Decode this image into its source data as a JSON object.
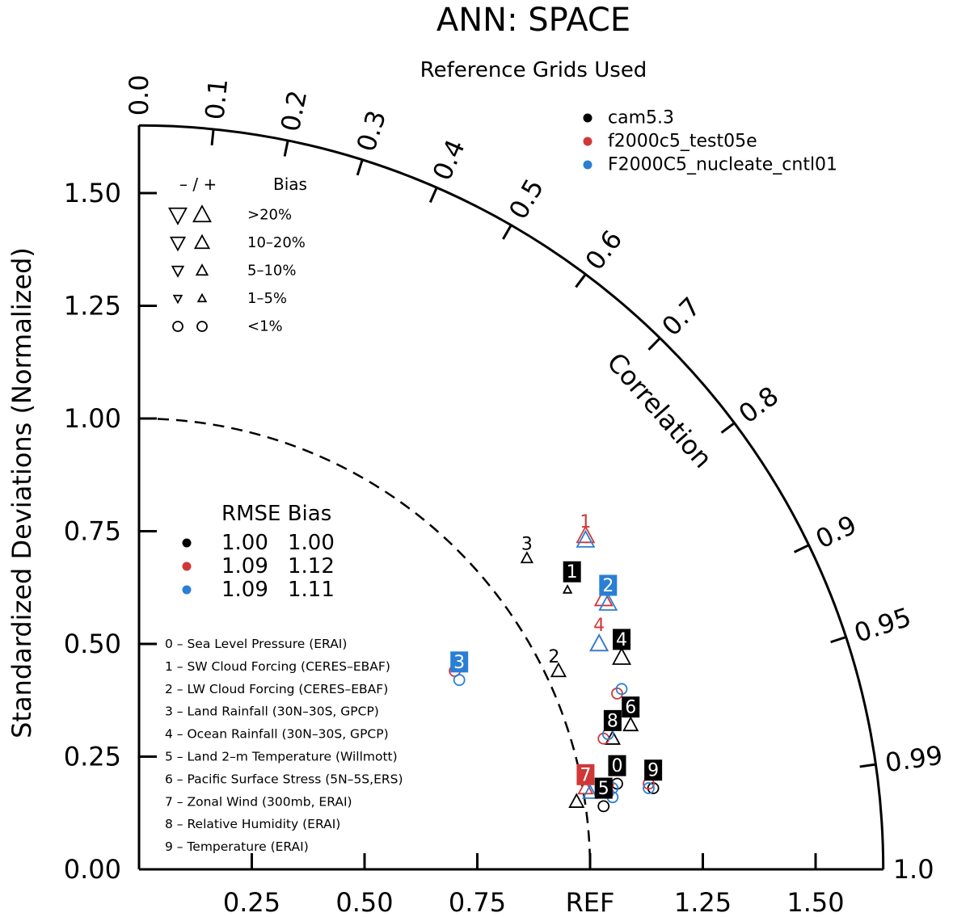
{
  "chart_data": {
    "type": "scatter",
    "subtype": "taylor-diagram",
    "title": "ANN: SPACE",
    "subtitle": "Reference Grids Used",
    "ylabel": "Standardized Deviations (Normalized)",
    "corr_label": "Correlation",
    "ref_label": "REF",
    "std_max": 1.65,
    "x_ticks": [
      "0.25",
      "0.50",
      "0.75",
      "REF",
      "1.25",
      "1.50"
    ],
    "x_tick_values": [
      0.25,
      0.5,
      0.75,
      1.0,
      1.25,
      1.5
    ],
    "y_ticks": [
      "0.00",
      "0.25",
      "0.50",
      "0.75",
      "1.00",
      "1.25",
      "1.50"
    ],
    "y_tick_values": [
      0,
      0.25,
      0.5,
      0.75,
      1.0,
      1.25,
      1.5
    ],
    "corr_ticks": [
      {
        "value": 0.0,
        "label": "0.0"
      },
      {
        "value": 0.1,
        "label": "0.1"
      },
      {
        "value": 0.2,
        "label": "0.2"
      },
      {
        "value": 0.3,
        "label": "0.3"
      },
      {
        "value": 0.4,
        "label": "0.4"
      },
      {
        "value": 0.5,
        "label": "0.5"
      },
      {
        "value": 0.6,
        "label": "0.6"
      },
      {
        "value": 0.7,
        "label": "0.7"
      },
      {
        "value": 0.8,
        "label": "0.8"
      },
      {
        "value": 0.9,
        "label": "0.9"
      },
      {
        "value": 0.95,
        "label": "0.95"
      },
      {
        "value": 0.99,
        "label": "0.99"
      },
      {
        "value": 1.0,
        "label": "1.0"
      }
    ],
    "series": [
      {
        "name": "cam5.3",
        "color": "#000000",
        "points": [
          {
            "var": "0",
            "x": 1.06,
            "y": 0.19,
            "bias": "lt1"
          },
          {
            "var": "1",
            "x": 0.95,
            "y": 0.62,
            "bias": "pos_1_5"
          },
          {
            "var": "2",
            "x": 0.93,
            "y": 0.44,
            "bias": "pos_10_20"
          },
          {
            "var": "3",
            "x": 0.86,
            "y": 0.69,
            "bias": "pos_5_10"
          },
          {
            "var": "4",
            "x": 1.07,
            "y": 0.47,
            "bias": "pos_gt20"
          },
          {
            "var": "5",
            "x": 1.03,
            "y": 0.14,
            "bias": "lt1"
          },
          {
            "var": "6",
            "x": 1.09,
            "y": 0.32,
            "bias": "pos_10_20"
          },
          {
            "var": "7",
            "x": 0.97,
            "y": 0.15,
            "bias": "pos_10_20"
          },
          {
            "var": "8",
            "x": 1.05,
            "y": 0.29,
            "bias": "pos_10_20"
          },
          {
            "var": "9",
            "x": 1.14,
            "y": 0.18,
            "bias": "lt1"
          }
        ]
      },
      {
        "name": "f2000c5_test05e",
        "color": "#d03838",
        "points": [
          {
            "var": "0",
            "x": 1.04,
            "y": 0.19,
            "bias": "lt1"
          },
          {
            "var": "1",
            "x": 0.99,
            "y": 0.74,
            "bias": "pos_gt20"
          },
          {
            "var": "2",
            "x": 1.03,
            "y": 0.6,
            "bias": "pos_gt20"
          },
          {
            "var": "3",
            "x": 0.7,
            "y": 0.44,
            "bias": "lt1"
          },
          {
            "var": "4",
            "x": 1.02,
            "y": 0.5,
            "bias": "pos_gt20"
          },
          {
            "var": "5",
            "x": 1.04,
            "y": 0.17,
            "bias": "lt1"
          },
          {
            "var": "6",
            "x": 1.06,
            "y": 0.39,
            "bias": "lt1"
          },
          {
            "var": "7",
            "x": 0.99,
            "y": 0.18,
            "bias": "pos_10_20"
          },
          {
            "var": "8",
            "x": 1.03,
            "y": 0.29,
            "bias": "lt1"
          },
          {
            "var": "9",
            "x": 1.13,
            "y": 0.19,
            "bias": "lt1"
          }
        ]
      },
      {
        "name": "F2000C5_nucleate_cntl01",
        "color": "#2a7fd4",
        "points": [
          {
            "var": "0",
            "x": 1.05,
            "y": 0.18,
            "bias": "lt1"
          },
          {
            "var": "1",
            "x": 0.99,
            "y": 0.73,
            "bias": "pos_gt20"
          },
          {
            "var": "2",
            "x": 1.04,
            "y": 0.59,
            "bias": "pos_gt20"
          },
          {
            "var": "3",
            "x": 0.71,
            "y": 0.42,
            "bias": "lt1"
          },
          {
            "var": "4",
            "x": 1.02,
            "y": 0.5,
            "bias": "pos_gt20"
          },
          {
            "var": "5",
            "x": 1.05,
            "y": 0.16,
            "bias": "lt1"
          },
          {
            "var": "6",
            "x": 1.07,
            "y": 0.4,
            "bias": "lt1"
          },
          {
            "var": "7",
            "x": 1.0,
            "y": 0.17,
            "bias": "pos_10_20"
          },
          {
            "var": "8",
            "x": 1.04,
            "y": 0.3,
            "bias": "lt1"
          },
          {
            "var": "9",
            "x": 1.13,
            "y": 0.18,
            "bias": "lt1"
          }
        ]
      }
    ],
    "case_labels": [
      {
        "series": 0,
        "var": "1",
        "x": 0.96,
        "y": 0.66,
        "style": "box"
      },
      {
        "series": 0,
        "var": "2",
        "x": 0.92,
        "y": 0.47,
        "style": "plain"
      },
      {
        "series": 0,
        "var": "3",
        "x": 0.86,
        "y": 0.72,
        "style": "plain"
      },
      {
        "series": 0,
        "var": "4",
        "x": 1.07,
        "y": 0.51,
        "style": "box"
      },
      {
        "series": 0,
        "var": "5",
        "x": 1.03,
        "y": 0.18,
        "style": "box"
      },
      {
        "series": 0,
        "var": "6",
        "x": 1.09,
        "y": 0.36,
        "style": "box"
      },
      {
        "series": 0,
        "var": "8",
        "x": 1.05,
        "y": 0.33,
        "style": "box"
      },
      {
        "series": 0,
        "var": "9",
        "x": 1.14,
        "y": 0.22,
        "style": "box"
      },
      {
        "series": 0,
        "var": "0",
        "x": 1.06,
        "y": 0.23,
        "style": "box"
      },
      {
        "series": 1,
        "var": "1",
        "x": 0.99,
        "y": 0.77,
        "style": "plain"
      },
      {
        "series": 1,
        "var": "2",
        "x": 1.03,
        "y": 0.63,
        "style": "plain"
      },
      {
        "series": 1,
        "var": "3",
        "x": 0.7,
        "y": 0.45,
        "style": "plain"
      },
      {
        "series": 1,
        "var": "4",
        "x": 1.02,
        "y": 0.54,
        "style": "plain"
      },
      {
        "series": 1,
        "var": "7",
        "x": 0.99,
        "y": 0.21,
        "style": "box"
      },
      {
        "series": 2,
        "var": "2",
        "x": 1.04,
        "y": 0.63,
        "style": "box"
      },
      {
        "series": 2,
        "var": "3",
        "x": 0.71,
        "y": 0.46,
        "style": "box"
      }
    ],
    "bias_legend": {
      "header_symbols": "–  /  +",
      "header_label": "Bias",
      "rows": [
        "&gt;20%",
        "10–20%",
        "5–10%",
        "1–5%",
        "&lt;1%"
      ],
      "rows_text": [
        ">20%",
        "10–20%",
        "5–10%",
        "1–5%",
        "<1%"
      ]
    },
    "stats_legend": {
      "header": "RMSE Bias",
      "rows": [
        {
          "rmse": "1.00",
          "bias": "1.00",
          "color": "#000000"
        },
        {
          "rmse": "1.09",
          "bias": "1.12",
          "color": "#d03838"
        },
        {
          "rmse": "1.09",
          "bias": "1.11",
          "color": "#2a7fd4"
        }
      ]
    },
    "variables": [
      "0 – Sea Level Pressure (ERAI)",
      "1 – SW Cloud Forcing (CERES–EBAF)",
      "2 – LW Cloud Forcing (CERES–EBAF)",
      "3 – Land Rainfall (30N–30S, GPCP)",
      "4 – Ocean Rainfall (30N–30S, GPCP)",
      "5 – Land 2–m Temperature (Willmott)",
      "6 – Pacific Surface Stress (5N–5S,ERS)",
      "7 – Zonal Wind (300mb, ERAI)",
      "8 – Relative Humidity (ERAI)",
      "9 – Temperature (ERAI)"
    ]
  }
}
